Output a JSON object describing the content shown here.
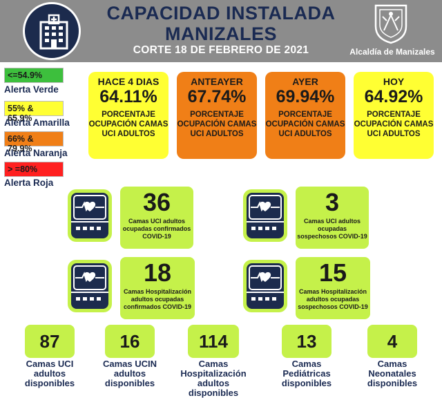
{
  "header": {
    "title_line1": "CAPACIDAD INSTALADA",
    "title_line2": "MANIZALES",
    "subtitle": "CORTE 18 DE FEBRERO DE 2021",
    "logo_text": "Alcaldía de Manizales",
    "hospital_icon": "hospital-building-icon",
    "crest_icon": "city-crest-icon"
  },
  "legend": [
    {
      "range": "<=54.9%",
      "label": "Alerta Verde",
      "color": "#3dbf3d"
    },
    {
      "range": "55% & 65.9%",
      "label": "Alerta Amarilla",
      "color": "#ffff33"
    },
    {
      "range": "66% & 79.9%",
      "label": "Alerta Naranja",
      "color": "#f07f17"
    },
    {
      "range": "> =80%",
      "label": "Alerta Roja",
      "color": "#ff2020"
    }
  ],
  "occupancy": [
    {
      "label": "HACE 4 DIAS",
      "value": "64.11%",
      "desc": "PORCENTAJE OCUPACIÓN CAMAS UCI ADULTOS",
      "color": "#ffff33"
    },
    {
      "label": "ANTEAYER",
      "value": "67.74%",
      "desc": "PORCENTAJE OCUPACIÓN CAMAS UCI ADULTOS",
      "color": "#f07f17"
    },
    {
      "label": "AYER",
      "value": "69.94%",
      "desc": "PORCENTAJE OCUPACIÓN CAMAS UCI ADULTOS",
      "color": "#f07f17"
    },
    {
      "label": "HOY",
      "value": "64.92%",
      "desc": "PORCENTAJE OCUPACIÓN CAMAS UCI ADULTOS",
      "color": "#ffff33"
    }
  ],
  "beds_cards": [
    {
      "number": "36",
      "desc": "Camas UCI adultos ocupadas confirmados COVID-19"
    },
    {
      "number": "3",
      "desc": "Camas UCI adultos ocupadas sospechosos COVID-19"
    },
    {
      "number": "18",
      "desc": "Camas Hospitalización adultos ocupadas confirmados COVID-19"
    },
    {
      "number": "15",
      "desc": "Camas Hospitalización adultos ocupadas sospechosos COVID-19"
    }
  ],
  "available": [
    {
      "number": "87",
      "label": "Camas UCI adultos disponibles"
    },
    {
      "number": "16",
      "label": "Camas UCIN adultos disponibles"
    },
    {
      "number": "114",
      "label": "Camas Hospitalización adultos disponibles"
    },
    {
      "number": "13",
      "label": "Camas Pediátricas disponibles"
    },
    {
      "number": "4",
      "label": "Camas Neonatales disponibles"
    }
  ],
  "colors": {
    "card_green": "#c5f14a",
    "navy": "#1a2a52",
    "header_gray": "#8c8c8c"
  },
  "monitor_icon": "heart-monitor-icon"
}
